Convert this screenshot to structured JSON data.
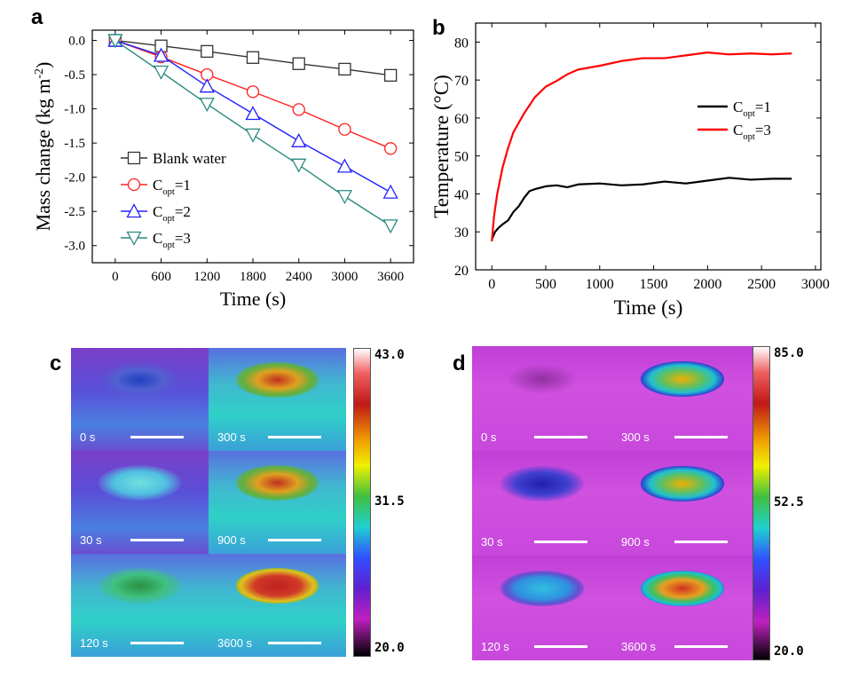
{
  "chart_data": [
    {
      "panel": "a",
      "type": "line",
      "xlabel": "Time (s)",
      "ylabel": "Mass change (kg m",
      "ylabel_sup": "-2",
      "ylabel_end": ")",
      "xlim": [
        -300,
        3900
      ],
      "ylim": [
        -3.25,
        0.15
      ],
      "xticks": [
        0,
        600,
        1200,
        1800,
        2400,
        3000,
        3600
      ],
      "yticks": [
        0.0,
        -0.5,
        -1.0,
        -1.5,
        -2.0,
        -2.5,
        -3.0
      ],
      "ytick_labels": [
        "0.0",
        "-0.5",
        "-1.0",
        "-1.5",
        "-2.0",
        "-2.5",
        "-3.0"
      ],
      "x": [
        0,
        600,
        1200,
        1800,
        2400,
        3000,
        3600
      ],
      "legend_position": "lower-left",
      "series": [
        {
          "name": "Blank water",
          "name_main": "Blank water",
          "name_sub": "",
          "name_tail": "",
          "color": "#333333",
          "marker": "square",
          "values": [
            0.0,
            -0.08,
            -0.16,
            -0.25,
            -0.34,
            -0.42,
            -0.51
          ]
        },
        {
          "name": "Copt=1",
          "name_main": "C",
          "name_sub": "opt",
          "name_tail": "=1",
          "color": "#ff2020",
          "marker": "circle",
          "values": [
            0.0,
            -0.24,
            -0.5,
            -0.75,
            -1.01,
            -1.3,
            -1.58
          ]
        },
        {
          "name": "Copt=2",
          "name_main": "C",
          "name_sub": "opt",
          "name_tail": "=2",
          "color": "#2020ff",
          "marker": "triangle-up",
          "values": [
            0.0,
            -0.22,
            -0.67,
            -1.07,
            -1.47,
            -1.84,
            -2.22
          ]
        },
        {
          "name": "Copt=3",
          "name_main": "C",
          "name_sub": "opt",
          "name_tail": "=3",
          "color": "#2a8a80",
          "marker": "triangle-down",
          "values": [
            0.0,
            -0.46,
            -0.93,
            -1.38,
            -1.82,
            -2.28,
            -2.71
          ]
        }
      ]
    },
    {
      "panel": "b",
      "type": "line",
      "xlabel": "Time (s)",
      "ylabel": "Temperature (°C)",
      "xlim": [
        -150,
        3050
      ],
      "ylim": [
        20,
        85
      ],
      "xticks": [
        0,
        500,
        1000,
        1500,
        2000,
        2500,
        3000
      ],
      "yticks": [
        20,
        30,
        40,
        50,
        60,
        70,
        80
      ],
      "legend_position": "upper-right",
      "series": [
        {
          "name": "Copt=1",
          "name_main": "C",
          "name_sub": "opt",
          "name_tail": "=1",
          "color": "#000000",
          "x": [
            0,
            30,
            60,
            100,
            150,
            200,
            250,
            300,
            350,
            400,
            500,
            600,
            700,
            800,
            1000,
            1200,
            1400,
            1600,
            1800,
            2000,
            2200,
            2400,
            2600,
            2780
          ],
          "values": [
            28,
            30,
            31,
            32,
            33,
            35,
            37,
            39,
            40.5,
            41.5,
            42,
            42,
            42,
            42.5,
            42.5,
            42.5,
            42.5,
            43,
            43,
            43.5,
            44,
            44,
            44,
            44
          ]
        },
        {
          "name": "Copt=3",
          "name_main": "C",
          "name_sub": "opt",
          "name_tail": "=3",
          "color": "#ff0000",
          "x": [
            0,
            20,
            50,
            100,
            150,
            200,
            300,
            400,
            500,
            600,
            700,
            800,
            1000,
            1200,
            1400,
            1600,
            1800,
            2000,
            2200,
            2400,
            2600,
            2780
          ],
          "values": [
            27.5,
            34,
            40,
            47,
            52,
            56,
            61.5,
            65.5,
            68,
            70,
            71.5,
            72.5,
            74,
            75,
            75.5,
            76,
            76.5,
            77,
            77,
            77,
            76.5,
            77
          ]
        }
      ]
    },
    {
      "panel": "c",
      "type": "heatmap",
      "frames": [
        "0 s",
        "300 s",
        "30 s",
        "900 s",
        "120 s",
        "3600 s"
      ],
      "colorbar": {
        "max": "43.0",
        "mid": "31.5",
        "min": "20.0"
      }
    },
    {
      "panel": "d",
      "type": "heatmap",
      "frames": [
        "0 s",
        "300 s",
        "30 s",
        "900 s",
        "120 s",
        "3600 s"
      ],
      "colorbar": {
        "max": "85.0",
        "mid": "52.5",
        "min": "20.0"
      }
    }
  ],
  "panel_letters": {
    "a": "a",
    "b": "b",
    "c": "c",
    "d": "d"
  }
}
